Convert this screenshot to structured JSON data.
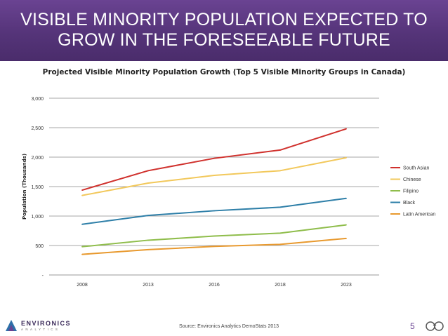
{
  "banner": {
    "line1": "VISIBLE MINORITY POPULATION EXPECTED TO",
    "line2": "GROW IN THE FORESEEABLE FUTURE"
  },
  "footer": {
    "source": "Source: Environics Analytics DemoStats 2013",
    "page_number": "5",
    "logo_word": "ENVIRONICS",
    "logo_sub": "ANALYTICS"
  },
  "colors": {
    "banner": "#553479",
    "accent": "#6a4392"
  },
  "chart_data": {
    "type": "line",
    "title": "Projected Visible Minority Population Growth (Top 5 Visible Minority Groups in Canada)",
    "xlabel": "",
    "ylabel": "Population (Thousands)",
    "categories": [
      "2008",
      "2013",
      "2016",
      "2018",
      "2023"
    ],
    "ylim": [
      0,
      3000
    ],
    "yticks": [
      0,
      500,
      1000,
      1500,
      2000,
      2500,
      3000
    ],
    "ytick_labels": [
      "-",
      "500",
      "1,000",
      "1,500",
      "2,000",
      "2,500",
      "3,000"
    ],
    "grid": true,
    "legend_position": "right",
    "series": [
      {
        "name": "South Asian",
        "color": "#d0312d",
        "values": [
          1440,
          1770,
          1980,
          2120,
          2480
        ]
      },
      {
        "name": "Chinese",
        "color": "#f2c85b",
        "values": [
          1350,
          1560,
          1690,
          1770,
          1990
        ]
      },
      {
        "name": "Filipino",
        "color": "#8fbd4b",
        "values": [
          480,
          590,
          660,
          710,
          850
        ]
      },
      {
        "name": "Black",
        "color": "#2e7fa8",
        "values": [
          860,
          1010,
          1090,
          1150,
          1300
        ]
      },
      {
        "name": "Latin American",
        "color": "#e8992e",
        "values": [
          350,
          430,
          485,
          520,
          620
        ]
      }
    ]
  }
}
